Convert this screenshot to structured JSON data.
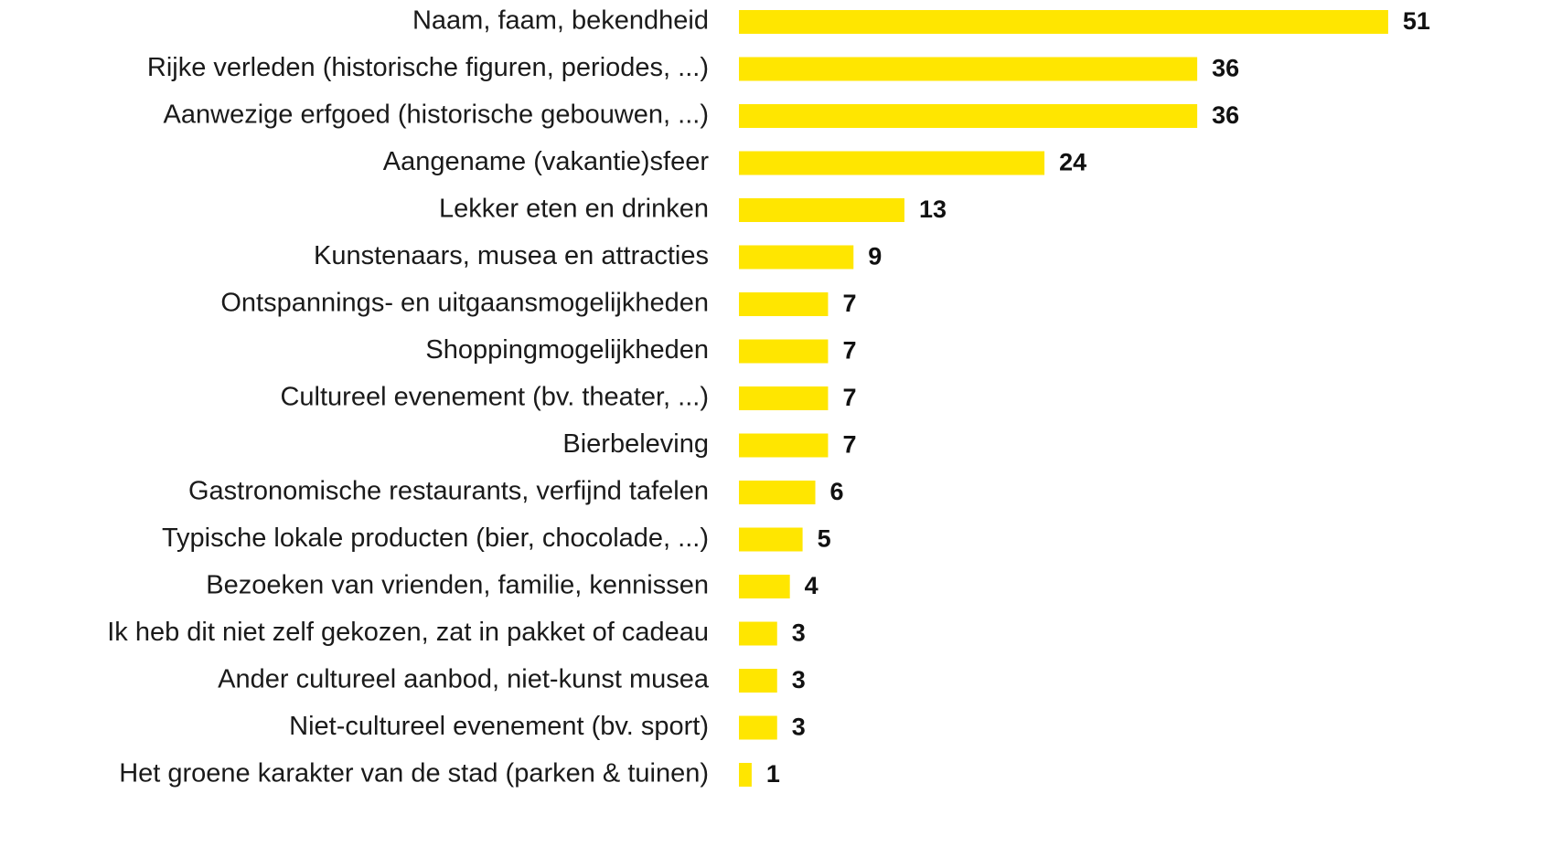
{
  "chart_data": {
    "type": "bar",
    "orientation": "horizontal",
    "color": "#ffe600",
    "categories": [
      "Naam, faam, bekendheid",
      "Rijke verleden (historische figuren, periodes, ...)",
      "Aanwezige erfgoed (historische gebouwen, ...)",
      "Aangename (vakantie)sfeer",
      "Lekker eten en drinken",
      "Kunstenaars, musea en attracties",
      "Ontspannings- en uitgaansmogelijkheden",
      "Shoppingmogelijkheden",
      "Cultureel evenement (bv. theater, ...)",
      "Bierbeleving",
      "Gastronomische restaurants, verfijnd tafelen",
      "Typische lokale producten (bier, chocolade, ...)",
      "Bezoeken van vrienden, familie, kennissen",
      "Ik heb dit niet zelf gekozen, zat in pakket of cadeau",
      "Ander cultureel aanbod, niet-kunst musea",
      "Niet-cultureel evenement (bv. sport)",
      "Het groene karakter van de stad (parken & tuinen)"
    ],
    "values": [
      51,
      36,
      36,
      24,
      13,
      9,
      7,
      7,
      7,
      7,
      6,
      5,
      4,
      3,
      3,
      3,
      1
    ]
  }
}
